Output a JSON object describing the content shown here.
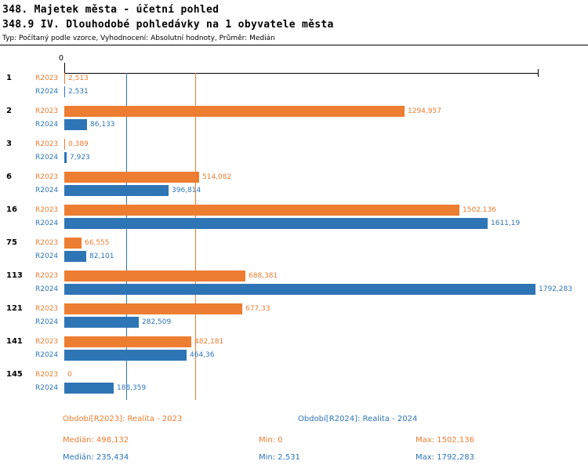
{
  "header": {
    "title1": "348. Majetek města - účetní pohled",
    "title2": "348.9 IV. Dlouhodobé pohledávky na 1 obyvatele města",
    "subtitle": "Typ: Počítaný podle vzorce, Vyhodnocení: Absolutní hodnoty, Průměr: Medián"
  },
  "chart": {
    "zero_label": "0"
  },
  "chart_data": {
    "type": "bar",
    "orientation": "horizontal",
    "title": "348.9 IV. Dlouhodobé pohledávky na 1 obyvatele města",
    "categories": [
      "1",
      "2",
      "3",
      "6",
      "16",
      "75",
      "113",
      "121",
      "141",
      "145"
    ],
    "series": [
      {
        "name": "R2023",
        "legend": "Období[R2023]: Realita - 2023",
        "color": "#ED7D31",
        "values": [
          2.513,
          1294.957,
          0.389,
          514.082,
          1502.136,
          66.555,
          688.381,
          677.33,
          482.181,
          0
        ],
        "labels": [
          "2,513",
          "1294,957",
          "0,389",
          "514,082",
          "1502,136",
          "66,555",
          "688,381",
          "677,33",
          "482,181",
          "0"
        ]
      },
      {
        "name": "R2024",
        "legend": "Období[R2024]: Realita - 2024",
        "color": "#2E75B6",
        "values": [
          2.531,
          86.133,
          7.923,
          396.814,
          1611.19,
          82.101,
          1792.283,
          282.509,
          464.36,
          188.359
        ],
        "labels": [
          "2,531",
          "86,133",
          "7,923",
          "396,814",
          "1611,19",
          "82,101",
          "1792,283",
          "282,509",
          "464,36",
          "188,359"
        ]
      }
    ],
    "xlim": [
      0,
      1792.283
    ],
    "median_lines": {
      "R2023": 498.132,
      "R2024": 235.434
    },
    "grid": false,
    "legend_position": "bottom"
  },
  "legend": {
    "r2023": "Období[R2023]: Realita - 2023",
    "r2024": "Období[R2024]: Realita - 2024"
  },
  "stats": {
    "r2023": {
      "median": "Medián: 498,132",
      "min": "Min: 0",
      "max": "Max: 1502,136"
    },
    "r2024": {
      "median": "Medián: 235,434",
      "min": "Min: 2,531",
      "max": "Max: 1792,283"
    }
  },
  "colors": {
    "r2023": "#ED7D31",
    "r2024": "#2E75B6"
  }
}
